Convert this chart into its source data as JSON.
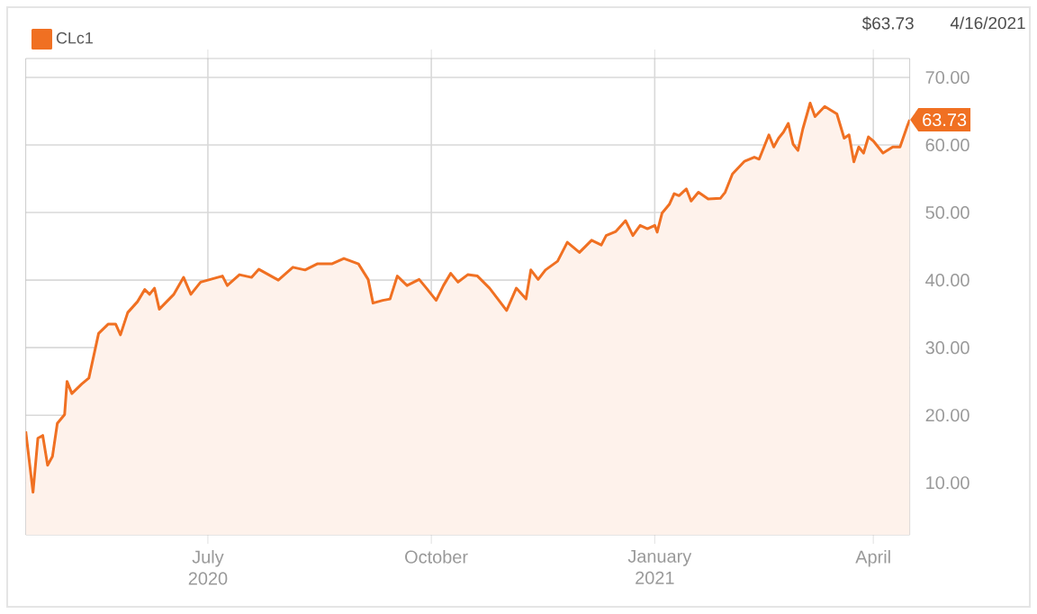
{
  "chart_data": {
    "type": "area",
    "annotations": [
      "$63.73",
      "4/16/2021",
      {
        "text": "63.73",
        "x": "2021-04-16",
        "y": 63.73
      }
    ],
    "series": [
      {
        "name": "CLc1",
        "color": "#f07022",
        "x": [
          "2020-04-17",
          "2020-04-20",
          "2020-04-22",
          "2020-04-24",
          "2020-04-26",
          "2020-04-28",
          "2020-04-30",
          "2020-05-03",
          "2020-05-04",
          "2020-05-06",
          "2020-05-10",
          "2020-05-13",
          "2020-05-17",
          "2020-05-21",
          "2020-05-24",
          "2020-05-26",
          "2020-05-29",
          "2020-06-02",
          "2020-06-05",
          "2020-06-07",
          "2020-06-09",
          "2020-06-11",
          "2020-06-17",
          "2020-06-21",
          "2020-06-24",
          "2020-06-28",
          "2020-07-02",
          "2020-07-07",
          "2020-07-09",
          "2020-07-14",
          "2020-07-19",
          "2020-07-22",
          "2020-07-25",
          "2020-07-30",
          "2020-08-05",
          "2020-08-10",
          "2020-08-15",
          "2020-08-21",
          "2020-08-26",
          "2020-09-01",
          "2020-09-05",
          "2020-09-07",
          "2020-09-11",
          "2020-09-14",
          "2020-09-17",
          "2020-09-21",
          "2020-09-26",
          "2020-09-29",
          "2020-10-03",
          "2020-10-06",
          "2020-10-09",
          "2020-10-12",
          "2020-10-16",
          "2020-10-20",
          "2020-10-25",
          "2020-11-01",
          "2020-11-05",
          "2020-11-09",
          "2020-11-11",
          "2020-11-14",
          "2020-11-17",
          "2020-11-22",
          "2020-11-26",
          "2020-12-01",
          "2020-12-06",
          "2020-12-10",
          "2020-12-12",
          "2020-12-16",
          "2020-12-20",
          "2020-12-23",
          "2020-12-26",
          "2020-12-29",
          "2021-01-01",
          "2021-01-02",
          "2021-01-04",
          "2021-01-07",
          "2021-01-09",
          "2021-01-11",
          "2021-01-14",
          "2021-01-16",
          "2021-01-19",
          "2021-01-23",
          "2021-01-28",
          "2021-01-30",
          "2021-02-02",
          "2021-02-07",
          "2021-02-11",
          "2021-02-13",
          "2021-02-15",
          "2021-02-17",
          "2021-02-19",
          "2021-02-21",
          "2021-02-23",
          "2021-02-25",
          "2021-02-27",
          "2021-03-01",
          "2021-03-03",
          "2021-03-06",
          "2021-03-08",
          "2021-03-12",
          "2021-03-17",
          "2021-03-20",
          "2021-03-22",
          "2021-03-24",
          "2021-03-26",
          "2021-03-28",
          "2021-03-30",
          "2021-04-01",
          "2021-04-03",
          "2021-04-05",
          "2021-04-09",
          "2021-04-12",
          "2021-04-15",
          "2021-04-16"
        ],
        "values": [
          17.6,
          8.6,
          16.6,
          17.0,
          12.6,
          13.9,
          18.8,
          20.1,
          25.0,
          23.2,
          24.6,
          25.5,
          32.1,
          33.5,
          33.5,
          31.9,
          35.2,
          36.8,
          38.6,
          37.9,
          38.8,
          35.7,
          37.9,
          40.4,
          37.9,
          39.7,
          40.1,
          40.6,
          39.2,
          40.8,
          40.4,
          41.6,
          41.0,
          40.0,
          41.9,
          41.5,
          42.4,
          42.4,
          43.2,
          42.4,
          40.1,
          36.6,
          37.0,
          37.2,
          40.6,
          39.2,
          40.1,
          38.8,
          37.0,
          39.2,
          41.0,
          39.7,
          40.8,
          40.6,
          38.8,
          35.5,
          38.8,
          37.2,
          41.5,
          40.1,
          41.5,
          42.8,
          45.6,
          44.1,
          45.9,
          45.2,
          46.6,
          47.2,
          48.8,
          46.6,
          48.1,
          47.6,
          48.1,
          47.1,
          49.9,
          51.2,
          52.8,
          52.5,
          53.5,
          51.7,
          53.0,
          52.0,
          52.1,
          53.0,
          55.7,
          57.6,
          58.2,
          57.9,
          59.7,
          61.5,
          59.7,
          61.0,
          61.9,
          63.2,
          60.1,
          59.2,
          62.4,
          66.2,
          64.2,
          65.7,
          64.6,
          61.0,
          61.5,
          57.5,
          59.7,
          58.8,
          61.2,
          60.6,
          59.7,
          58.8,
          59.7,
          59.7,
          62.8,
          63.73
        ]
      }
    ],
    "xlim": [
      "2020-04-17",
      "2021-04-16"
    ],
    "xticks": [
      {
        "value": "2020-07-01",
        "label": "July 2020"
      },
      {
        "value": "2020-10-01",
        "label": "October"
      },
      {
        "value": "2021-01-01",
        "label": "January 2021"
      },
      {
        "value": "2021-04-01",
        "label": "April"
      }
    ],
    "ylim": [
      2.3,
      72.8
    ],
    "yticks": [
      {
        "value": 10,
        "label": "10.00"
      },
      {
        "value": 20,
        "label": "20.00"
      },
      {
        "value": 30,
        "label": "30.00"
      },
      {
        "value": 40,
        "label": "40.00"
      },
      {
        "value": 50,
        "label": "50.00"
      },
      {
        "value": 60,
        "label": "60.00"
      },
      {
        "value": 70,
        "label": "70.00"
      }
    ],
    "grid": true,
    "legend": "top left"
  }
}
